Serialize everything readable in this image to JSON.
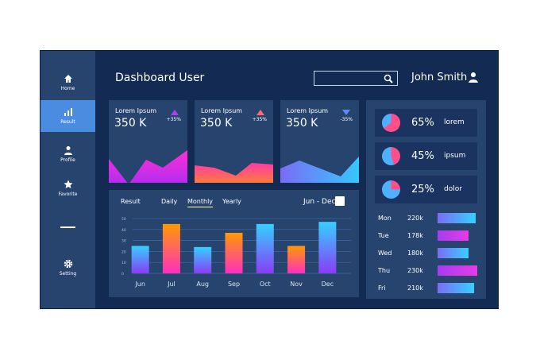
{
  "sidebar": {
    "items": [
      {
        "label": "Home",
        "icon": "home-icon"
      },
      {
        "label": "Result",
        "icon": "bar-chart-icon",
        "active": true
      },
      {
        "label": "Profile",
        "icon": "person-icon"
      },
      {
        "label": "Favorite",
        "icon": "star-icon"
      },
      {
        "label": "Setting",
        "icon": "gear-icon"
      }
    ]
  },
  "header": {
    "title": "Dashboard User",
    "search_value": "",
    "user": "John Smith"
  },
  "cards": [
    {
      "label": "Lorem Ipsum",
      "value": "350 K",
      "change": "+35%",
      "trend": "up",
      "color": "#b23cf0"
    },
    {
      "label": "Lorem Ipsum",
      "value": "350 K",
      "change": "+35%",
      "trend": "up",
      "color": "#ff6a6a"
    },
    {
      "label": "Lorem Ipsum",
      "value": "350 K",
      "change": "-35%",
      "trend": "down",
      "color": "#5b8cf5"
    }
  ],
  "chart_panel": {
    "title": "Result",
    "tabs": [
      "Daily",
      "Monthly",
      "Yearly"
    ],
    "selected_tab": "Monthly",
    "range": "Jun - Dec"
  },
  "chart_data": {
    "type": "bar",
    "categories": [
      "Jun",
      "Jul",
      "Aug",
      "Sep",
      "Oct",
      "Nov",
      "Dec"
    ],
    "values": [
      25,
      45,
      24,
      37,
      45,
      25,
      47
    ],
    "yticks": [
      0,
      10,
      20,
      30,
      40,
      50
    ],
    "ylim": [
      0,
      50
    ],
    "grid": true,
    "colors": [
      "blue",
      "orange",
      "blue",
      "orange",
      "blue",
      "orange",
      "blue"
    ]
  },
  "stats": [
    {
      "percent": "65%",
      "label": "lorem",
      "value": 65
    },
    {
      "percent": "45%",
      "label": "ipsum",
      "value": 45
    },
    {
      "percent": "25%",
      "label": "dolor",
      "value": 25
    }
  ],
  "days": [
    {
      "day": "Mon",
      "value": "220k",
      "n": 220,
      "style": "blue"
    },
    {
      "day": "Tue",
      "value": "178k",
      "n": 178,
      "style": "purple"
    },
    {
      "day": "Wed",
      "value": "180k",
      "n": 180,
      "style": "blue"
    },
    {
      "day": "Thu",
      "value": "230k",
      "n": 230,
      "style": "purple"
    },
    {
      "day": "Fri",
      "value": "210k",
      "n": 210,
      "style": "blue"
    }
  ]
}
